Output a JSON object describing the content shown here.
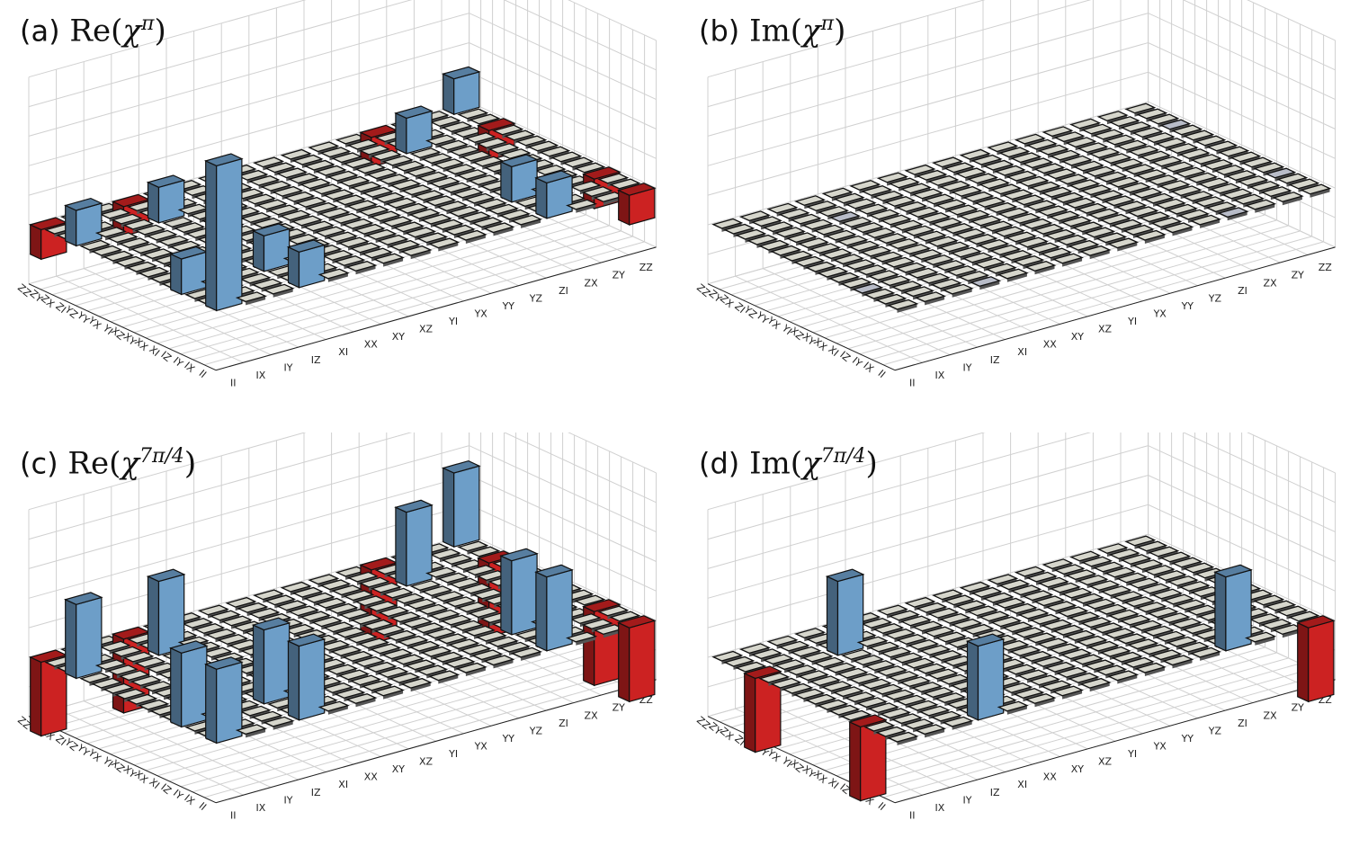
{
  "chart_data": [
    {
      "type": "bar3d",
      "panel_label": "(a)",
      "title_prefix": "Re",
      "title_exp": "π",
      "zlabel": "Re(χ)",
      "x_categories": [
        "II",
        "IX",
        "IY",
        "IZ",
        "XI",
        "XX",
        "XY",
        "XZ",
        "YI",
        "YX",
        "YY",
        "YZ",
        "ZI",
        "ZX",
        "ZY",
        "ZZ"
      ],
      "y_categories": [
        "II",
        "IX",
        "IY",
        "IZ",
        "XI",
        "XX",
        "XY",
        "XZ",
        "YI",
        "YX",
        "YY",
        "YZ",
        "ZI",
        "ZX",
        "ZY",
        "ZZ"
      ],
      "z_ticks": [
        "0.5",
        "0.4",
        "0.3",
        "0.2",
        "0.1",
        "0.0",
        "−0.1",
        "−0.2"
      ],
      "zlim": [
        -0.2,
        0.5
      ],
      "bars": [
        {
          "x": "II",
          "y": "II",
          "z": 0.49
        },
        {
          "x": "IZ",
          "y": "II",
          "z": 0.12
        },
        {
          "x": "II",
          "y": "IZ",
          "z": 0.12
        },
        {
          "x": "IZ",
          "y": "IZ",
          "z": 0.12
        },
        {
          "x": "ZI",
          "y": "II",
          "z": 0.12
        },
        {
          "x": "ZZ",
          "y": "II",
          "z": -0.1
        },
        {
          "x": "ZI",
          "y": "IZ",
          "z": 0.12
        },
        {
          "x": "ZZ",
          "y": "IZ",
          "z": -0.1
        },
        {
          "x": "II",
          "y": "ZI",
          "z": 0.12
        },
        {
          "x": "IZ",
          "y": "ZI",
          "z": 0.12
        },
        {
          "x": "II",
          "y": "ZZ",
          "z": -0.1
        },
        {
          "x": "IZ",
          "y": "ZZ",
          "z": -0.1
        },
        {
          "x": "ZI",
          "y": "ZI",
          "z": 0.12
        },
        {
          "x": "ZZ",
          "y": "ZI",
          "z": -0.1
        },
        {
          "x": "ZI",
          "y": "ZZ",
          "z": -0.1
        },
        {
          "x": "ZZ",
          "y": "ZZ",
          "z": 0.12
        }
      ]
    },
    {
      "type": "bar3d",
      "panel_label": "(b)",
      "title_prefix": "Im",
      "title_exp": "π",
      "zlabel": "Im(χ)",
      "x_categories": [
        "II",
        "IX",
        "IY",
        "IZ",
        "XI",
        "XX",
        "XY",
        "XZ",
        "YI",
        "YX",
        "YY",
        "YZ",
        "ZI",
        "ZX",
        "ZY",
        "ZZ"
      ],
      "y_categories": [
        "II",
        "IX",
        "IY",
        "IZ",
        "XI",
        "XX",
        "XY",
        "XZ",
        "YI",
        "YX",
        "YY",
        "YZ",
        "ZI",
        "ZX",
        "ZY",
        "ZZ"
      ],
      "z_ticks": [
        "0.5",
        "0.4",
        "0.3",
        "0.2",
        "0.1",
        "0.0",
        "−0.1",
        "−0.2"
      ],
      "zlim": [
        -0.2,
        0.5
      ],
      "bars": [
        {
          "x": "IZ",
          "y": "II",
          "z": -0.01
        },
        {
          "x": "ZI",
          "y": "II",
          "z": 0.01
        },
        {
          "x": "II",
          "y": "IZ",
          "z": 0.01
        },
        {
          "x": "ZZ",
          "y": "IZ",
          "z": 0.01
        },
        {
          "x": "IZ",
          "y": "ZI",
          "z": -0.01
        },
        {
          "x": "ZZ",
          "y": "ZI",
          "z": -0.01
        }
      ]
    },
    {
      "type": "bar3d",
      "panel_label": "(c)",
      "title_prefix": "Re",
      "title_exp": "7π/4",
      "zlabel": "Re(χ)",
      "x_categories": [
        "II",
        "IX",
        "IY",
        "IZ",
        "XI",
        "XX",
        "XY",
        "XZ",
        "YI",
        "YX",
        "YY",
        "YZ",
        "ZI",
        "ZX",
        "ZY",
        "ZZ"
      ],
      "y_categories": [
        "II",
        "IX",
        "IY",
        "IZ",
        "XI",
        "XX",
        "XY",
        "XZ",
        "YI",
        "YX",
        "YY",
        "YZ",
        "ZI",
        "ZX",
        "ZY",
        "ZZ"
      ],
      "z_ticks": [
        "0.5",
        "0.4",
        "0.3",
        "0.2",
        "0.1",
        "0.0",
        "−0.1",
        "−0.2"
      ],
      "zlim": [
        -0.2,
        0.5
      ],
      "bars": [
        {
          "x": "II",
          "y": "II",
          "z": 0.25
        },
        {
          "x": "IZ",
          "y": "II",
          "z": 0.25
        },
        {
          "x": "II",
          "y": "IZ",
          "z": 0.25
        },
        {
          "x": "IZ",
          "y": "IZ",
          "z": 0.25
        },
        {
          "x": "ZI",
          "y": "II",
          "z": 0.25
        },
        {
          "x": "ZZ",
          "y": "II",
          "z": -0.25
        },
        {
          "x": "ZI",
          "y": "IZ",
          "z": 0.25
        },
        {
          "x": "ZZ",
          "y": "IZ",
          "z": -0.25
        },
        {
          "x": "II",
          "y": "ZI",
          "z": 0.25
        },
        {
          "x": "IZ",
          "y": "ZI",
          "z": 0.25
        },
        {
          "x": "II",
          "y": "ZZ",
          "z": -0.25
        },
        {
          "x": "IZ",
          "y": "ZZ",
          "z": -0.25
        },
        {
          "x": "ZI",
          "y": "ZI",
          "z": 0.25
        },
        {
          "x": "ZZ",
          "y": "ZI",
          "z": -0.25
        },
        {
          "x": "ZI",
          "y": "ZZ",
          "z": -0.25
        },
        {
          "x": "ZZ",
          "y": "ZZ",
          "z": 0.25
        }
      ]
    },
    {
      "type": "bar3d",
      "panel_label": "(d)",
      "title_prefix": "Im",
      "title_exp": "7π/4",
      "zlabel": "Im(χ)",
      "x_categories": [
        "II",
        "IX",
        "IY",
        "IZ",
        "XI",
        "XX",
        "XY",
        "XZ",
        "YI",
        "YX",
        "YY",
        "YZ",
        "ZI",
        "ZX",
        "ZY",
        "ZZ"
      ],
      "y_categories": [
        "II",
        "IX",
        "IY",
        "IZ",
        "XI",
        "XX",
        "XY",
        "XZ",
        "YI",
        "YX",
        "YY",
        "YZ",
        "ZI",
        "ZX",
        "ZY",
        "ZZ"
      ],
      "z_ticks": [
        "0.5",
        "0.4",
        "0.3",
        "0.2",
        "0.1",
        "0.0",
        "−0.1",
        "−0.2"
      ],
      "zlim": [
        -0.2,
        0.5
      ],
      "bars": [
        {
          "x": "IZ",
          "y": "II",
          "z": 0.25
        },
        {
          "x": "II",
          "y": "IZ",
          "z": -0.25
        },
        {
          "x": "ZI",
          "y": "II",
          "z": 0.25
        },
        {
          "x": "ZZ",
          "y": "II",
          "z": -0.25
        },
        {
          "x": "II",
          "y": "ZI",
          "z": -0.25
        },
        {
          "x": "IZ",
          "y": "ZI",
          "z": 0.25
        }
      ]
    }
  ],
  "colors": {
    "positive": "#6d9ec8",
    "negative": "#cc2222",
    "tile": "#d6d6cc",
    "grid": "#d0d0d0"
  }
}
